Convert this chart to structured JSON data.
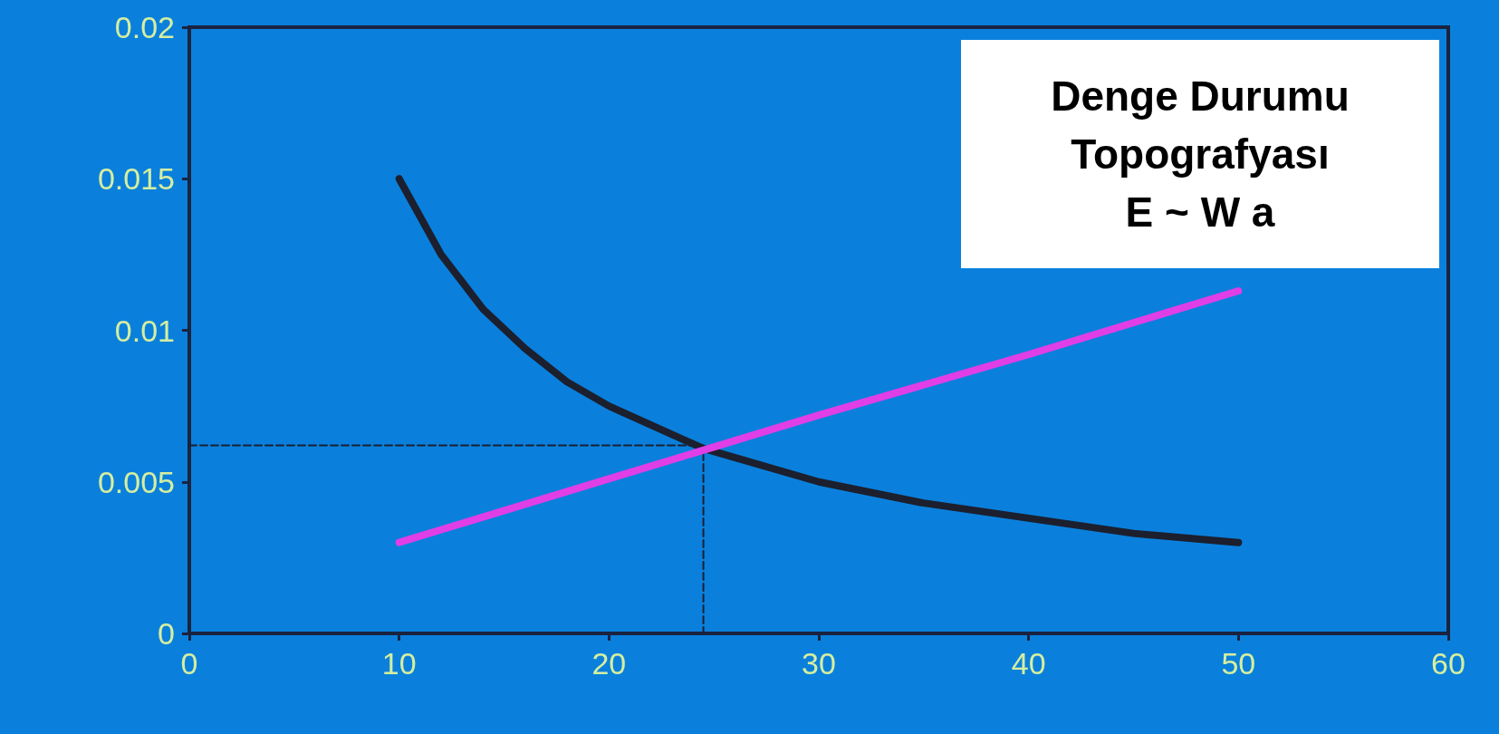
{
  "chart_data": {
    "type": "line",
    "x": [
      10,
      12,
      14,
      16,
      18,
      20,
      24.5,
      30,
      35,
      40,
      45,
      50
    ],
    "series": [
      {
        "color": "#1c1f2e",
        "values": [
          0.015,
          0.0125,
          0.0107,
          0.0094,
          0.0083,
          0.0075,
          0.0061,
          0.005,
          0.0043,
          0.0038,
          0.0033,
          0.003
        ]
      },
      {
        "color": "#e03ee6",
        "x": [
          10,
          20,
          30,
          40,
          50
        ],
        "values": [
          0.003,
          0.0051,
          0.0072,
          0.0092,
          0.0113
        ]
      },
      {
        "color": "#1c1f2e",
        "x": [
          0,
          24.5,
          24.5
        ],
        "values": [
          0.0062,
          0.0062,
          0
        ],
        "line_style": "dashed"
      }
    ],
    "xlim": [
      0,
      60
    ],
    "xticks": [
      0,
      10,
      20,
      30,
      40,
      50,
      60
    ],
    "ylim": [
      0,
      0.02
    ],
    "yticks": [
      0,
      0.005,
      0.01,
      0.015,
      0.02
    ],
    "grid": false,
    "marker": "none",
    "annotations": [
      "Denge Durumu\nTopografyası\nE ~ W a"
    ]
  }
}
